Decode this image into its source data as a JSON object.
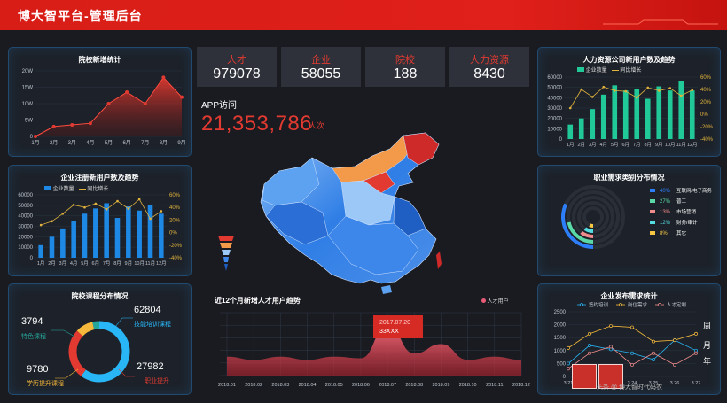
{
  "header": {
    "title": "博大智平台-管理后台"
  },
  "stats": [
    {
      "label": "人才",
      "value": "979078"
    },
    {
      "label": "企业",
      "value": "58055"
    },
    {
      "label": "院校",
      "value": "188"
    },
    {
      "label": "人力资源",
      "value": "8430"
    }
  ],
  "app": {
    "label": "APP访问",
    "value": "21,353,786",
    "unit": "人次"
  },
  "colors": {
    "header": "#e0201a",
    "accent_red": "#e23a31",
    "panel_border": "#224a6e",
    "bar_green": "#20c997",
    "bar_blue": "#1e88e5",
    "line_yellow": "#e2b33c"
  },
  "chart_data": [
    {
      "type": "area",
      "title": "院校新增统计",
      "categories": [
        "1月",
        "2月",
        "3月",
        "4月",
        "5月",
        "6月",
        "7月",
        "8月",
        "9月"
      ],
      "values": [
        0,
        3,
        3.5,
        4,
        10,
        13.5,
        10,
        18,
        12
      ],
      "yticks": [
        "0",
        "5W",
        "10W",
        "15W",
        "20W"
      ],
      "ylim": [
        0,
        20
      ]
    },
    {
      "type": "bar",
      "title": "企业注册新用户数及趋势",
      "categories": [
        "1月",
        "2月",
        "3月",
        "4月",
        "5月",
        "6月",
        "7月",
        "8月",
        "9月",
        "10月",
        "11月",
        "12月"
      ],
      "series": [
        {
          "name": "企业数量",
          "values": [
            12000,
            20000,
            28000,
            35000,
            42000,
            47000,
            52000,
            38000,
            49000,
            45000,
            50000,
            42000
          ]
        },
        {
          "name": "同比增长",
          "values": [
            12,
            18,
            30,
            44,
            40,
            46,
            37,
            50,
            38,
            53,
            22,
            34
          ]
        }
      ],
      "yticks": [
        "0",
        "10000",
        "20000",
        "30000",
        "40000",
        "50000",
        "60000"
      ],
      "y2ticks": [
        "-40%",
        "-20%",
        "0%",
        "20%",
        "40%",
        "60%"
      ],
      "ylim": [
        0,
        60000
      ],
      "y2lim": [
        -40,
        60
      ]
    },
    {
      "type": "bar",
      "title": "人力资源公司新用户数及趋势",
      "categories": [
        "1月",
        "2月",
        "3月",
        "4月",
        "5月",
        "6月",
        "7月",
        "8月",
        "9月",
        "10月",
        "11月",
        "12月"
      ],
      "series": [
        {
          "name": "企业数量",
          "values": [
            14000,
            20000,
            29000,
            43000,
            52000,
            47000,
            48000,
            39000,
            51000,
            47000,
            56000,
            47000
          ]
        },
        {
          "name": "同比增长",
          "values": [
            10,
            40,
            28,
            44,
            38,
            37,
            27,
            43,
            38,
            42,
            30,
            39
          ]
        }
      ],
      "yticks": [
        "0",
        "10000",
        "20000",
        "30000",
        "40000",
        "50000",
        "60000"
      ],
      "y2ticks": [
        "-40%",
        "-20%",
        "0%",
        "20%",
        "40%",
        "60%"
      ],
      "ylim": [
        0,
        60000
      ],
      "y2lim": [
        -40,
        60
      ]
    },
    {
      "type": "pie",
      "title": "院校课程分布情况",
      "labels": [
        "特色课程",
        "技能培训课程",
        "学历提升课程",
        "职业提升"
      ],
      "values": [
        3794,
        62804,
        9780,
        27982
      ],
      "colors": [
        "#26a69a",
        "#29b6f6",
        "#f6b93b",
        "#e23a31"
      ]
    },
    {
      "type": "pie",
      "title": "职业需求类别分布情况",
      "labels": [
        "互联网/电子商务",
        "普工",
        "市场营销",
        "财务/审计",
        "其它"
      ],
      "values": [
        40,
        27,
        13,
        12,
        8
      ],
      "value_labels": [
        "40%",
        "27%",
        "13%",
        "12%",
        "8%"
      ],
      "colors": [
        "#2d7ff9",
        "#5ad8a6",
        "#f08c8c",
        "#54dce0",
        "#f7c744"
      ]
    },
    {
      "type": "area",
      "title": "近12个月新增人才用户趋势",
      "legend": "人才用户",
      "categories": [
        "2018.01",
        "2018.02",
        "2018.03",
        "2018.04",
        "2018.05",
        "2018.06",
        "2018.07",
        "2018.08",
        "2018.09",
        "2018.10",
        "2018.11",
        "2018.12"
      ],
      "values": [
        12,
        10,
        12,
        10,
        12,
        11,
        32,
        14,
        20,
        10,
        12,
        10
      ],
      "tooltip": {
        "date": "2017.07.20",
        "value": "33XXX"
      }
    },
    {
      "type": "line",
      "title": "企业发布需求统计",
      "categories": [
        "3.21",
        "3.22",
        "3.23",
        "3.24",
        "3.25",
        "3.26",
        "3.27"
      ],
      "series": [
        {
          "name": "签约培训",
          "values": [
            500,
            1200,
            1050,
            900,
            650,
            1400,
            1000
          ]
        },
        {
          "name": "岗位需求",
          "values": [
            1100,
            1650,
            1950,
            1900,
            1350,
            1400,
            1650
          ]
        },
        {
          "name": "人才定制",
          "values": [
            300,
            900,
            1150,
            450,
            900,
            450,
            900
          ]
        }
      ],
      "yticks": [
        "0",
        "500",
        "1000",
        "1500",
        "2000",
        "2500"
      ],
      "ylim": [
        0,
        2500
      ]
    }
  ],
  "legend_labels": {
    "company_count": "企业数量",
    "yoy": "同比增长",
    "talent_users": "人才用户"
  },
  "side_text": {
    "chars": [
      "周",
      "月",
      "年"
    ]
  },
  "watermark": {
    "text": "头条 @ 博大智时代码农"
  }
}
